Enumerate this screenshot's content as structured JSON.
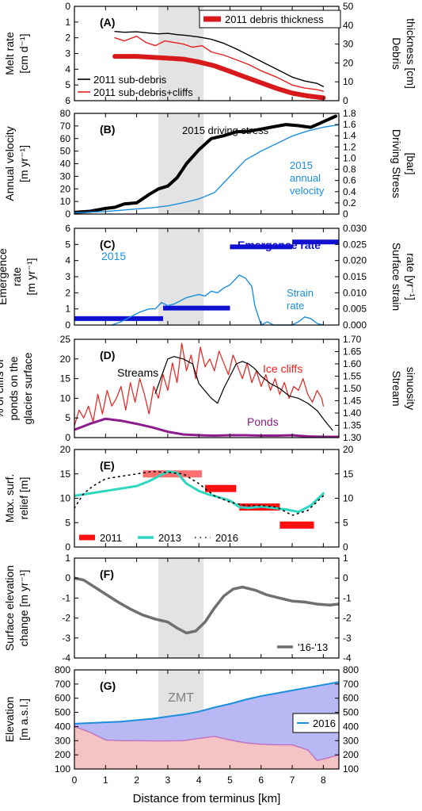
{
  "figure": {
    "x_axis_label": "Distance from terminus [km]",
    "x_ticks": [
      "0",
      "1",
      "2",
      "3",
      "4",
      "5",
      "6",
      "7",
      "8"
    ],
    "xlim": [
      0,
      8.5
    ],
    "zmt_band": [
      2.7,
      4.15
    ],
    "zmt_label": "ZMT"
  },
  "chart_data": [
    {
      "panel": "(A)",
      "type": "line",
      "ylabel_left": [
        "Melt rate",
        "[cm d⁻¹]"
      ],
      "ylabel_right": [
        "Debris",
        "thickness [cm]"
      ],
      "ylim_left": [
        6,
        0
      ],
      "yticks_left": [
        "0",
        "1",
        "2",
        "3",
        "4",
        "5",
        "6"
      ],
      "ylim_right": [
        0,
        50
      ],
      "yticks_right": [
        "0",
        "10",
        "20",
        "30",
        "40",
        "50"
      ],
      "legend_top": "2011 debris thickness",
      "series": [
        {
          "name": "2011 sub-debris",
          "color": "#000000",
          "axis": "left",
          "width": 1.4,
          "x": [
            1.3,
            1.6,
            2,
            2.4,
            2.7,
            3,
            3.3,
            3.6,
            4,
            4.4,
            4.8,
            5.2,
            5.6,
            6,
            6.5,
            7,
            7.4,
            7.8,
            8.0
          ],
          "y": [
            1.6,
            1.65,
            1.62,
            1.7,
            1.75,
            1.72,
            1.8,
            1.85,
            1.95,
            2.1,
            2.35,
            2.7,
            3.1,
            3.5,
            4.0,
            4.5,
            4.75,
            4.9,
            5.1
          ]
        },
        {
          "name": "2011 sub-debris+cliffs",
          "color": "#e8211f",
          "axis": "left",
          "width": 1.4,
          "x": [
            1.3,
            1.6,
            2,
            2.3,
            2.6,
            2.9,
            3.2,
            3.5,
            3.8,
            4.1,
            4.4,
            4.8,
            5.2,
            5.6,
            6,
            6.5,
            7,
            7.4,
            7.8,
            8.0
          ],
          "y": [
            2.0,
            2.2,
            1.9,
            2.3,
            2.5,
            2.2,
            2.3,
            2.4,
            2.6,
            2.5,
            2.9,
            3.1,
            3.4,
            3.7,
            4.1,
            4.5,
            5.0,
            5.2,
            5.3,
            5.4
          ]
        },
        {
          "name": "2011 debris thickness",
          "color": "#d7191c",
          "axis": "right",
          "width": 6,
          "x": [
            1.3,
            2,
            2.5,
            3,
            3.5,
            4,
            4.5,
            5,
            5.5,
            6,
            6.5,
            7,
            7.5,
            8.0
          ],
          "y": [
            23.5,
            23.5,
            23,
            22.5,
            22,
            20.5,
            18.5,
            15.5,
            12.5,
            9.5,
            6.5,
            4,
            2.5,
            1.5
          ]
        }
      ]
    },
    {
      "panel": "(B)",
      "type": "line",
      "ylabel_left": [
        "Annual velocity",
        "[m yr⁻¹]"
      ],
      "ylabel_right": [
        "Driving Stress",
        "[bar]"
      ],
      "ylim_left": [
        0,
        80
      ],
      "yticks_left": [
        "0",
        "10",
        "20",
        "30",
        "40",
        "50",
        "60",
        "70",
        "80"
      ],
      "ylim_right": [
        0,
        1.8
      ],
      "yticks_right": [
        "0",
        "0.2",
        "0.4",
        "0.6",
        "0.8",
        "1.0",
        "1.2",
        "1.4",
        "1.6",
        "1.8"
      ],
      "annotations": [
        "2015 driving stress",
        "2015",
        "annual",
        "velocity"
      ],
      "series": [
        {
          "name": "2015 driving stress",
          "color": "#000000",
          "axis": "right",
          "width": 4,
          "x": [
            0,
            0.5,
            1,
            1.3,
            1.6,
            2,
            2.4,
            2.7,
            3,
            3.3,
            3.6,
            4,
            4.4,
            4.8,
            5.2,
            5.6,
            6,
            6.4,
            6.8,
            7.2,
            7.6,
            8,
            8.4
          ],
          "y": [
            0.03,
            0.05,
            0.1,
            0.12,
            0.18,
            0.2,
            0.35,
            0.45,
            0.5,
            0.65,
            0.9,
            1.15,
            1.35,
            1.4,
            1.47,
            1.48,
            1.52,
            1.56,
            1.6,
            1.58,
            1.55,
            1.65,
            1.75
          ]
        },
        {
          "name": "2015 annual velocity",
          "color": "#1a8fe0",
          "axis": "left",
          "width": 1.4,
          "x": [
            0,
            0.5,
            1,
            1.5,
            2,
            2.5,
            3,
            3.5,
            4,
            4.5,
            5,
            5.5,
            6,
            6.5,
            7,
            7.5,
            8,
            8.5
          ],
          "y": [
            1,
            1.5,
            2,
            3,
            4,
            5,
            6.5,
            9,
            12,
            17,
            30,
            43,
            50,
            56,
            62,
            66,
            69,
            71
          ]
        }
      ]
    },
    {
      "panel": "(C)",
      "type": "line",
      "ylabel_left": [
        "Emergence",
        "rate",
        "[m yr⁻¹]"
      ],
      "ylabel_right": [
        "Surface strain",
        "rate [yr⁻¹]"
      ],
      "ylim_left": [
        0,
        6
      ],
      "yticks_left": [
        "0",
        "1",
        "2",
        "3",
        "4",
        "5",
        "6"
      ],
      "ylim_right": [
        0,
        0.03
      ],
      "yticks_right": [
        "0.000",
        "0.005",
        "0.010",
        "0.015",
        "0.020",
        "0.025",
        "0.030"
      ],
      "annotations": [
        "2015",
        "Emergence rate",
        "Strain",
        "rate"
      ],
      "emergence_segments": [
        {
          "x0": 0,
          "x1": 2.85,
          "value": 0.4
        },
        {
          "x0": 2.85,
          "x1": 5.0,
          "value": 1.05
        },
        {
          "x0": 5.0,
          "x1": 7.0,
          "value": 4.85
        },
        {
          "x0": 7.0,
          "x1": 8.5,
          "value": 5.15
        }
      ],
      "series": [
        {
          "name": "Strain rate",
          "color": "#1a8fe0",
          "axis": "right",
          "width": 1.4,
          "x": [
            1.2,
            1.5,
            1.8,
            2.1,
            2.4,
            2.6,
            2.8,
            3.0,
            3.2,
            3.4,
            3.6,
            3.8,
            4.0,
            4.2,
            4.4,
            4.6,
            4.8,
            5.0,
            5.3,
            5.5,
            5.7,
            5.8,
            6.0,
            6.2,
            6.4,
            7.0,
            7.2,
            7.4,
            7.6,
            7.8,
            8.0
          ],
          "y": [
            0.0,
            0.001,
            0.0025,
            0.004,
            0.005,
            0.005,
            0.007,
            0.006,
            0.0065,
            0.0075,
            0.0085,
            0.009,
            0.0095,
            0.009,
            0.0105,
            0.01,
            0.0115,
            0.0125,
            0.0155,
            0.0145,
            0.012,
            0.006,
            0.0,
            0.001,
            0.0,
            0.0,
            0.001,
            0.0025,
            0.002,
            0.0005,
            0.0
          ]
        }
      ]
    },
    {
      "panel": "(D)",
      "type": "line",
      "ylabel_left": [
        "% of cliffs or",
        "ponds on the",
        "glacier surface"
      ],
      "ylabel_right": [
        "Stream",
        "sinuosity"
      ],
      "ylim_left": [
        0,
        25
      ],
      "yticks_left": [
        "0",
        "5",
        "10",
        "15",
        "20",
        "25"
      ],
      "ylim_right": [
        1.3,
        1.7
      ],
      "yticks_right": [
        "1.30",
        "1.35",
        "1.40",
        "1.45",
        "1.50",
        "1.55",
        "1.60",
        "1.65",
        "1.70"
      ],
      "annotations": [
        "Streams",
        "Ice cliffs",
        "Ponds"
      ],
      "series": [
        {
          "name": "Ice cliffs",
          "color": "#e8211f",
          "axis": "left",
          "width": 1.2,
          "x": [
            0,
            0.15,
            0.3,
            0.45,
            0.6,
            0.75,
            0.9,
            1.05,
            1.2,
            1.35,
            1.5,
            1.65,
            1.8,
            1.95,
            2.1,
            2.25,
            2.4,
            2.55,
            2.7,
            2.85,
            3.0,
            3.15,
            3.3,
            3.45,
            3.6,
            3.75,
            3.9,
            4.05,
            4.2,
            4.35,
            4.5,
            4.65,
            4.8,
            4.95,
            5.1,
            5.25,
            5.4,
            5.55,
            5.7,
            5.85,
            6.0,
            6.15,
            6.3,
            6.45,
            6.6,
            6.75,
            6.9,
            7.05,
            7.2,
            7.35,
            7.5,
            7.65,
            7.8,
            7.95,
            8.0
          ],
          "y": [
            3,
            7,
            5,
            8,
            4,
            11,
            6,
            12,
            8,
            10,
            13,
            7,
            14,
            9,
            15,
            11,
            6,
            13,
            10,
            16,
            12,
            19,
            14,
            24,
            17,
            21,
            15,
            23,
            18,
            20,
            17,
            22,
            19,
            16,
            21,
            18,
            15,
            19,
            14,
            17,
            13,
            16,
            12,
            15,
            11,
            14,
            10,
            13,
            12,
            15,
            11,
            9,
            12,
            10,
            8
          ]
        },
        {
          "name": "Streams",
          "color": "#000000",
          "axis": "right",
          "width": 1.2,
          "x": [
            2.6,
            2.8,
            3.0,
            3.2,
            3.5,
            3.8,
            4.0,
            4.2,
            4.4,
            4.6,
            4.8,
            5.0,
            5.2,
            5.4,
            5.6,
            5.8,
            6.0,
            6.3,
            6.6,
            6.9,
            7.2,
            7.5,
            7.8,
            8.1,
            8.3
          ],
          "y": [
            1.48,
            1.55,
            1.62,
            1.63,
            1.62,
            1.6,
            1.52,
            1.49,
            1.46,
            1.44,
            1.5,
            1.55,
            1.6,
            1.61,
            1.6,
            1.58,
            1.55,
            1.52,
            1.5,
            1.47,
            1.46,
            1.44,
            1.41,
            1.36,
            1.33
          ]
        },
        {
          "name": "Ponds",
          "color": "#8e1b8e",
          "axis": "left",
          "width": 3,
          "x": [
            0,
            0.5,
            1,
            1.5,
            2,
            2.5,
            3,
            3.5,
            4,
            4.5,
            5,
            5.5,
            6,
            6.5,
            7,
            7.5,
            8,
            8.5
          ],
          "y": [
            2,
            3.5,
            4.8,
            4.3,
            3.5,
            2.6,
            1.5,
            0.8,
            0.6,
            0.5,
            0.6,
            0.6,
            0.5,
            0.5,
            0.6,
            0.3,
            0.2,
            0.2
          ]
        }
      ]
    },
    {
      "panel": "(E)",
      "type": "line",
      "ylabel_left": [
        "Max. surf.",
        "relief [m]"
      ],
      "ylim": [
        0,
        20
      ],
      "yticks": [
        "0",
        "5",
        "10",
        "15",
        "20"
      ],
      "legend": [
        "2011",
        "2013",
        "2016"
      ],
      "bars_2011": [
        {
          "x0": 2.2,
          "x1": 4.1,
          "value": 15.0
        },
        {
          "x0": 4.2,
          "x1": 5.2,
          "value": 12.0
        },
        {
          "x0": 5.3,
          "x1": 6.6,
          "value": 8.2
        },
        {
          "x0": 6.6,
          "x1": 7.7,
          "value": 4.5
        }
      ],
      "series": [
        {
          "name": "2013",
          "color": "#2ed6c0",
          "axis": "left",
          "width": 3,
          "x": [
            0,
            0.5,
            1,
            1.5,
            2,
            2.4,
            2.7,
            3.0,
            3.3,
            3.6,
            4.0,
            4.3,
            4.6,
            5.0,
            5.3,
            5.6,
            6.0,
            6.4,
            6.8,
            7.2,
            7.6,
            8.0
          ],
          "y": [
            10.5,
            11,
            11.5,
            12,
            12.5,
            13.5,
            14.5,
            15.5,
            15.2,
            13,
            11.5,
            10.8,
            10.3,
            9.5,
            8.2,
            8.0,
            8.3,
            8.0,
            7.7,
            7.2,
            8.5,
            11
          ]
        },
        {
          "name": "2016",
          "color": "#000000",
          "axis": "left",
          "width": 1.6,
          "dotted": true,
          "x": [
            0,
            0.3,
            0.6,
            1,
            1.5,
            2,
            2.5,
            3,
            3.5,
            4,
            4.5,
            5,
            5.5,
            6,
            6.5,
            7,
            7.5,
            8
          ],
          "y": [
            8,
            11,
            12.5,
            14,
            14.5,
            15,
            15.5,
            15.3,
            15,
            13,
            10.5,
            9.2,
            8.5,
            8.5,
            8.2,
            6.5,
            7.5,
            10.5
          ]
        }
      ]
    },
    {
      "panel": "(F)",
      "type": "line",
      "ylabel_left": [
        "Surface elevation",
        "change [m yr⁻¹]"
      ],
      "ylim": [
        -4,
        1
      ],
      "yticks": [
        "1",
        "0",
        "-1",
        "-2",
        "-3",
        "-4"
      ],
      "legend": [
        "'16-'13"
      ],
      "series": [
        {
          "name": "'16-'13",
          "color": "#707070",
          "axis": "left",
          "width": 3.5,
          "x": [
            0,
            0.3,
            0.6,
            1,
            1.4,
            1.8,
            2.2,
            2.6,
            3.0,
            3.3,
            3.6,
            3.9,
            4.2,
            4.5,
            4.8,
            5.1,
            5.4,
            5.8,
            6.2,
            6.6,
            7.0,
            7.4,
            7.8,
            8.2,
            8.5
          ],
          "y": [
            0,
            -0.1,
            -0.4,
            -0.8,
            -1.2,
            -1.55,
            -1.85,
            -2.05,
            -2.2,
            -2.5,
            -2.75,
            -2.65,
            -2.2,
            -1.5,
            -0.9,
            -0.55,
            -0.45,
            -0.6,
            -0.85,
            -1.0,
            -1.15,
            -1.2,
            -1.3,
            -1.35,
            -1.3
          ]
        }
      ]
    },
    {
      "panel": "(G)",
      "type": "area",
      "ylabel_left": [
        "Elevation",
        "[m a.s.l.]"
      ],
      "ylim": [
        100,
        800
      ],
      "yticks": [
        "100",
        "200",
        "300",
        "400",
        "500",
        "600",
        "700",
        "800"
      ],
      "legend": [
        "2016"
      ],
      "series": [
        {
          "name": "2016",
          "color": "#1a8fe0",
          "fill": "#b8b8f4",
          "x": [
            0,
            0.5,
            1,
            1.5,
            2,
            2.5,
            3,
            3.5,
            4,
            4.5,
            5,
            5.5,
            6,
            6.5,
            7,
            7.5,
            8,
            8.5
          ],
          "y": [
            420,
            425,
            430,
            435,
            445,
            455,
            470,
            485,
            505,
            535,
            560,
            590,
            615,
            635,
            655,
            675,
            695,
            715
          ]
        },
        {
          "color": "#c070c0",
          "fill": "#f4c4c4",
          "x": [
            0,
            0.5,
            1,
            1.5,
            2,
            2.5,
            3,
            3.5,
            4,
            4.5,
            5,
            5.5,
            6,
            6.5,
            7,
            7.5,
            7.8,
            8.1,
            8.5
          ],
          "y": [
            400,
            360,
            305,
            300,
            300,
            298,
            298,
            300,
            315,
            330,
            305,
            285,
            275,
            270,
            270,
            235,
            160,
            175,
            200
          ]
        }
      ]
    }
  ]
}
